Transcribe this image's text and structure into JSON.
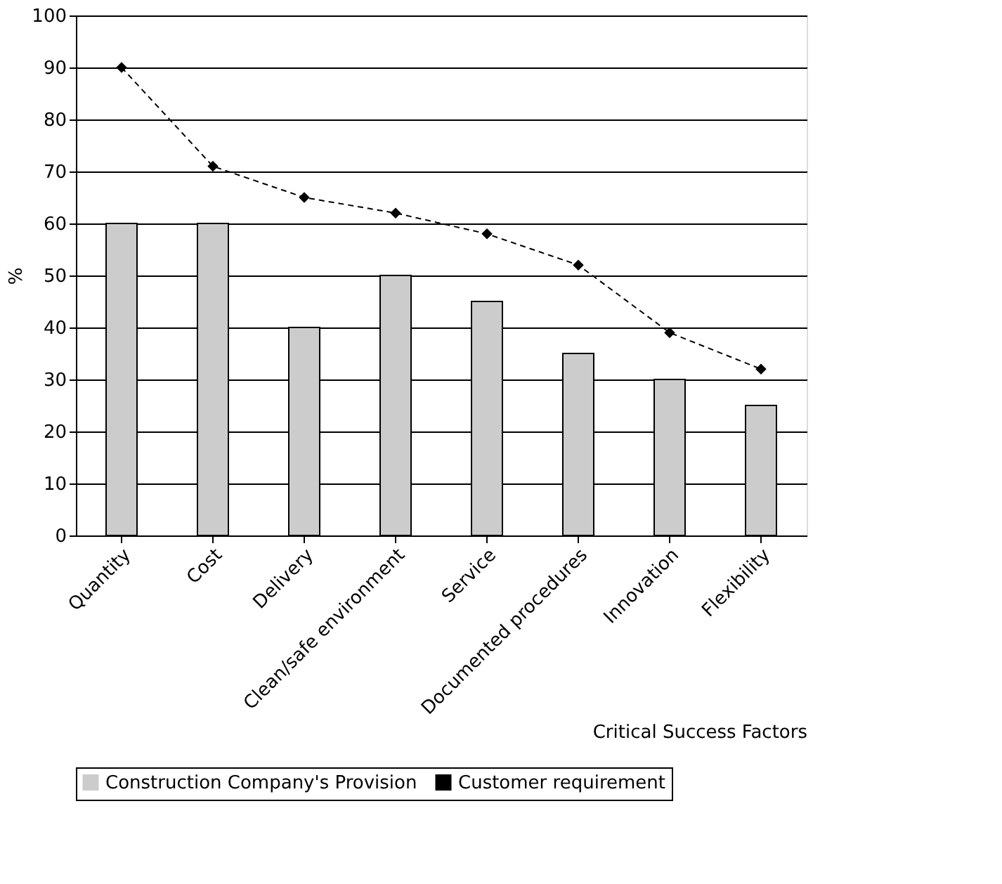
{
  "chart_data": {
    "type": "bar",
    "xlabel": "Critical Success Factors",
    "ylabel": "%",
    "categories": [
      "Quantity",
      "Cost",
      "Delivery",
      "Clean/safe environment",
      "Service",
      "Documented procedures",
      "Innovation",
      "Flexibility"
    ],
    "series": [
      {
        "name": "Construction Company's Provision",
        "color": "#cccccc",
        "values": [
          60,
          60,
          40,
          50,
          45,
          35,
          30,
          25
        ]
      },
      {
        "name": "Customer requirement",
        "type": "line",
        "color": "#000000",
        "marker": "diamond",
        "line_style": "dashed",
        "values": [
          90,
          71,
          65,
          62,
          58,
          52,
          39,
          32
        ]
      }
    ],
    "ylim": [
      0,
      100
    ],
    "yticks": [
      0,
      10,
      20,
      30,
      40,
      50,
      60,
      70,
      80,
      90,
      100
    ],
    "grid": "y",
    "legend": "bottom"
  }
}
